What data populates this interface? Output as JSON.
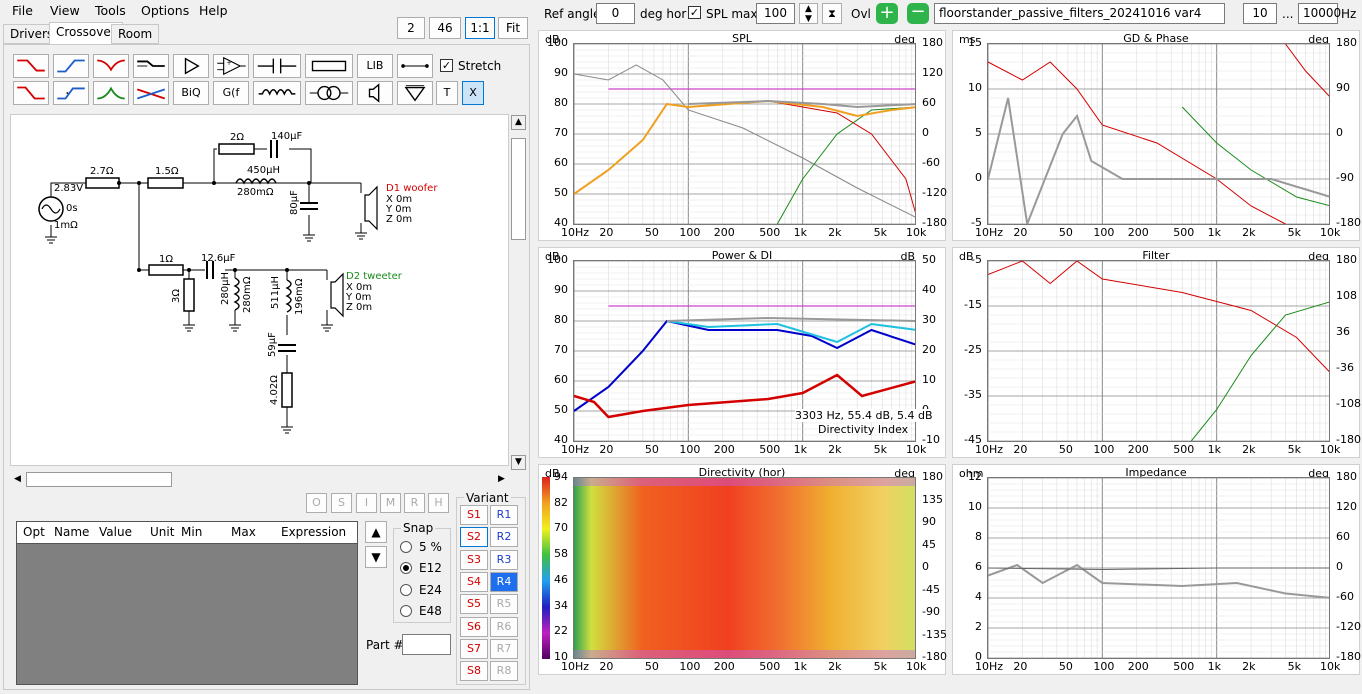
{
  "menu": [
    "File",
    "View",
    "Tools",
    "Options",
    "Help"
  ],
  "top_buttons": {
    "b2": "2",
    "b46": "46",
    "b11": "1:1",
    "fit": "Fit"
  },
  "tabs": [
    "Drivers",
    "Crossover",
    "Room"
  ],
  "stretch_label": "Stretch",
  "toolbar": {
    "lib": "LIB",
    "biq": "BiQ",
    "gf": "G(f",
    "t": "T",
    "x": "X"
  },
  "topbar": {
    "ref_angle_label": "Ref angle",
    "ref_angle": "0",
    "deg_hor": "deg hor",
    "spl_max_label": "SPL max",
    "spl_max": "100",
    "ovl_label": "Ovl",
    "filename": "floorstander_passive_filters_20241016 var4",
    "freq_lo": "10",
    "dots": "...",
    "freq_hi": "10000",
    "hz": "Hz"
  },
  "schematic": {
    "source": {
      "v": "2.83V",
      "t": "0s",
      "r": "1mΩ"
    },
    "r27": "2.7Ω",
    "r15": "1.5Ω",
    "r2": "2Ω",
    "c140": "140µF",
    "l450": "450µH",
    "l450r": "280mΩ",
    "c80": "80µF",
    "d1": "D1 woofer",
    "d1x": "X 0m",
    "d1y": "Y 0m",
    "d1z": "Z 0m",
    "r1": "1Ω",
    "c126": "12.6µF",
    "r3": "3Ω",
    "l280": "280µH",
    "l280r": "280mΩ",
    "l511": "511µH",
    "l511r": "196mΩ",
    "c59": "59µF",
    "r402": "4.02Ω",
    "d2": "D2 tweeter",
    "d2x": "X 0m",
    "d2y": "Y 0m",
    "d2z": "Z 0m"
  },
  "opt_buttons": [
    "O",
    "S",
    "I",
    "M",
    "R",
    "H"
  ],
  "table_headers": [
    "Opt",
    "Name",
    "Value",
    "Unit",
    "Min",
    "Max",
    "Expression"
  ],
  "snap": {
    "title": "Snap",
    "options": [
      "5 %",
      "E12",
      "E24",
      "E48"
    ],
    "selected": "E12"
  },
  "part_label": "Part #",
  "variant": {
    "title": "Variant",
    "s": [
      "S1",
      "S2",
      "S3",
      "S4",
      "S5",
      "S6",
      "S7",
      "S8"
    ],
    "r": [
      "R1",
      "R2",
      "R3",
      "R4",
      "R5",
      "R6",
      "R7",
      "R8"
    ],
    "selected": "R4"
  },
  "colors": {
    "red": "#d40000",
    "green": "#1a8a1a",
    "magenta": "#cc44cc",
    "blue": "#0000cc",
    "cyan": "#20c0e0",
    "orange": "#f0a020",
    "gray": "#999999"
  },
  "x_ticks": [
    "10Hz",
    "20",
    "50",
    "100",
    "200",
    "500",
    "1k",
    "2k",
    "5k",
    "10k"
  ],
  "spl": {
    "title": "SPL",
    "left_unit": "dB",
    "right_unit": "deg",
    "left_ticks": [
      "100",
      "90",
      "80",
      "70",
      "60",
      "50",
      "40"
    ],
    "right_ticks": [
      "180",
      "120",
      "60",
      "0",
      "-60",
      "-120",
      "-180"
    ]
  },
  "gd": {
    "title": "GD & Phase",
    "left_unit": "ms",
    "right_unit": "deg",
    "left_ticks": [
      "15",
      "10",
      "5",
      "0",
      "-5"
    ],
    "right_ticks": [
      "180",
      "90",
      "0",
      "-90",
      "-180"
    ]
  },
  "power": {
    "title": "Power & DI",
    "left_unit": "dB",
    "right_unit": "dB",
    "left_ticks": [
      "100",
      "90",
      "80",
      "70",
      "60",
      "50",
      "40"
    ],
    "right_ticks": [
      "50",
      "40",
      "30",
      "20",
      "10",
      "0",
      "-10"
    ],
    "readout": "3303 Hz, 55.4 dB, 5.4 dB",
    "readout_label": "Directivity Index"
  },
  "filter": {
    "title": "Filter",
    "left_unit": "dB",
    "right_unit": "deg",
    "left_ticks": [
      "-5",
      "-15",
      "-25",
      "-35",
      "-45"
    ],
    "right_ticks": [
      "180",
      "108",
      "36",
      "-36",
      "-108",
      "-180"
    ]
  },
  "directivity": {
    "title": "Directivity (hor)",
    "left_unit": "dB",
    "right_unit": "deg",
    "left_ticks": [
      "94",
      "82",
      "70",
      "58",
      "46",
      "34",
      "22",
      "10"
    ],
    "right_ticks": [
      "180",
      "135",
      "90",
      "45",
      "0",
      "-45",
      "-90",
      "-135",
      "-180"
    ]
  },
  "impedance": {
    "title": "Impedance",
    "left_unit": "ohm",
    "right_unit": "deg",
    "left_ticks": [
      "12",
      "10",
      "8",
      "6",
      "4",
      "2",
      "0"
    ],
    "right_ticks": [
      "180",
      "120",
      "60",
      "0",
      "-60",
      "-120",
      "-180"
    ]
  }
}
